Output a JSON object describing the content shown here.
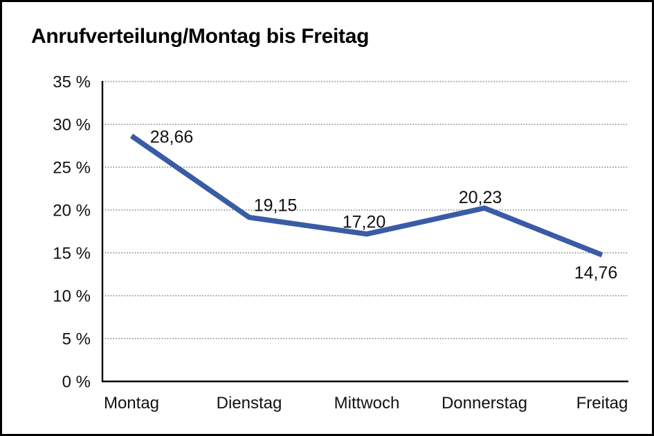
{
  "page": {
    "background": "#ffffff",
    "border_color": "#000000"
  },
  "chart_data": {
    "type": "line",
    "title": "Anrufverteilung/Montag bis Freitag",
    "categories": [
      "Montag",
      "Dienstag",
      "Mittwoch",
      "Donnerstag",
      "Freitag"
    ],
    "values": [
      28.66,
      19.15,
      17.2,
      20.23,
      14.76
    ],
    "value_labels": [
      "28,66",
      "19,15",
      "17,20",
      "20,23",
      "14,76"
    ],
    "series_name": "Anrufverteilung",
    "xlabel": "",
    "ylabel": "",
    "ylim": [
      0,
      35
    ],
    "ytick_step": 5,
    "ytick_labels": [
      "0 %",
      "5 %",
      "10 %",
      "15 %",
      "20 %",
      "25 %",
      "30 %",
      "35 %"
    ],
    "grid": "horizontal-dotted",
    "legend": "none",
    "line_color": "#3a5ba6",
    "grid_color": "#606060",
    "axis_color": "#000000",
    "text_color": "#111111"
  }
}
